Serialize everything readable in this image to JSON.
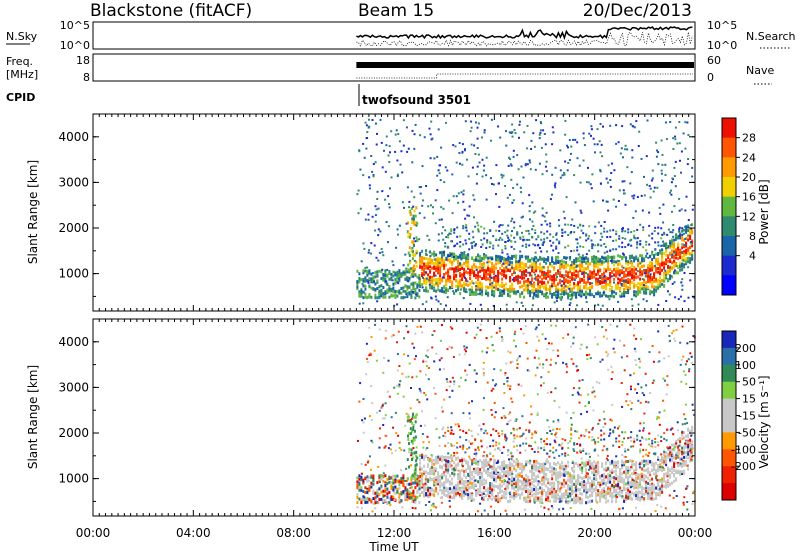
{
  "header": {
    "station": "Blackstone (fitACF)",
    "beam": "Beam 15",
    "date": "20/Dec/2013"
  },
  "strips": {
    "nsky": {
      "label": "N.Sky",
      "left_ticks": [
        "10^5",
        "10^0"
      ],
      "right_label": "N.Search",
      "right_ticks": [
        "10^5",
        "10^0"
      ]
    },
    "freq": {
      "label_top": "Freq.",
      "label_bottom": "[MHz]",
      "left_ticks": [
        "18",
        "8"
      ],
      "right_label": "Nave",
      "right_ticks": [
        "60",
        "0"
      ]
    },
    "cpid": {
      "label": "CPID",
      "program": "twofsound 3501"
    }
  },
  "chart_data": [
    {
      "type": "heatmap",
      "quantity": "Power",
      "ylabel": "Slant Range [km]",
      "xlabel": "",
      "x_ticks": [
        "00:00",
        "04:00",
        "08:00",
        "12:00",
        "16:00",
        "20:00",
        "00:00"
      ],
      "xlim_hours": [
        0,
        24
      ],
      "y_ticks": [
        1000,
        2000,
        3000,
        4000
      ],
      "ylim_km": [
        180,
        4500
      ],
      "colorbar": {
        "label": "Power [dB]",
        "ticks": [
          "28",
          "24",
          "20",
          "16",
          "12",
          "8",
          "4"
        ],
        "colors": [
          "#ee1100",
          "#ff5500",
          "#ff9a00",
          "#f0d000",
          "#60b840",
          "#2f8a70",
          "#1a64a8",
          "#1c2ad0",
          "#0000ff"
        ]
      },
      "data_start_hour": 10.5
    },
    {
      "type": "heatmap",
      "quantity": "Velocity",
      "ylabel": "Slant Range [km]",
      "xlabel": "Time UT",
      "x_ticks": [
        "00:00",
        "04:00",
        "08:00",
        "12:00",
        "16:00",
        "20:00",
        "00:00"
      ],
      "xlim_hours": [
        0,
        24
      ],
      "y_ticks": [
        1000,
        2000,
        3000,
        4000
      ],
      "ylim_km": [
        180,
        4500
      ],
      "colorbar": {
        "label": "Velocity [m s⁻¹]",
        "ticks": [
          "200",
          "100",
          "50",
          "15",
          "-15",
          "-50",
          "-100",
          "-200"
        ],
        "colors": [
          "#1828b8",
          "#2a6fa8",
          "#2f8a58",
          "#7fcf40",
          "#c8c8c8",
          "#c8c8c8",
          "#ff9a00",
          "#ff5500",
          "#ee2200",
          "#dd0000"
        ]
      },
      "data_start_hour": 10.5
    }
  ]
}
